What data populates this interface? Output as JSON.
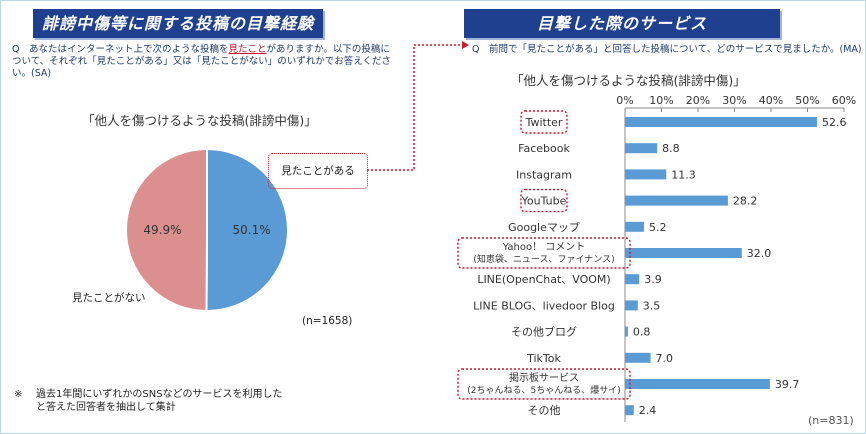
{
  "left_panel": {
    "banner": "誹謗中傷等に関する投稿の目撃経験",
    "question_prefix": "Q",
    "question_part1": "あなたはインターネット上で次のような投稿を",
    "question_highlight": "見たこと",
    "question_part2": "がありますか。以下の投稿について、それぞれ「見たことがある」又は「見たことがない」のいずれかでお答えください。(SA)",
    "callout": "見たことがある",
    "not_seen_label": "見たことがない",
    "n_label": "(n=1658)",
    "footnote_mark": "※",
    "footnote_line1": "過去1年間にいずれかのSNSなどのサービスを利用した",
    "footnote_line2": "と答えた回答者を抽出して集計"
  },
  "right_panel": {
    "banner": "目撃した際のサービス",
    "question": "Q　前問で「見たことがある」と回答した投稿について、どのサービスで見ましたか。(MA)",
    "n_label": "(n=831)"
  },
  "colors": {
    "banner_bg": "#1f3f8f",
    "pie_seen": "#5b9bd5",
    "pie_not_seen": "#dc8f8f",
    "bar": "#5b9bd5",
    "highlight": "#d0162a"
  },
  "chart_data": [
    {
      "type": "pie",
      "title": "「他人を傷つけるような投稿(誹謗中傷)」",
      "slices": [
        {
          "label": "見たことがある",
          "value": 50.1,
          "display": "50.1%"
        },
        {
          "label": "見たことがない",
          "value": 49.9,
          "display": "49.9%"
        }
      ]
    },
    {
      "type": "bar",
      "orientation": "horizontal",
      "title": "「他人を傷つけるような投稿(誹謗中傷)」",
      "xlim": [
        0,
        60
      ],
      "ticks": [
        "0%",
        "10%",
        "20%",
        "30%",
        "40%",
        "50%",
        "60%"
      ],
      "categories": [
        {
          "name": "Twitter",
          "value": 52.6,
          "label": "52.6",
          "highlight": true
        },
        {
          "name": "Facebook",
          "value": 8.8,
          "label": "8.8",
          "highlight": false
        },
        {
          "name": "Instagram",
          "value": 11.3,
          "label": "11.3",
          "highlight": false
        },
        {
          "name": "YouTube",
          "value": 28.2,
          "label": "28.2",
          "highlight": true
        },
        {
          "name": "Googleマップ",
          "value": 5.2,
          "label": "5.2",
          "highlight": false
        },
        {
          "name": "Yahoo！ コメント",
          "name2": "(知恵袋、ニュース、ファイナンス)",
          "value": 32.0,
          "label": "32.0",
          "highlight": true
        },
        {
          "name": "LINE(OpenChat、VOOM)",
          "value": 3.9,
          "label": "3.9",
          "highlight": false
        },
        {
          "name": "LINE BLOG、livedoor Blog",
          "value": 3.5,
          "label": "3.5",
          "highlight": false
        },
        {
          "name": "その他ブログ",
          "value": 0.8,
          "label": "0.8",
          "highlight": false
        },
        {
          "name": "TikTok",
          "value": 7.0,
          "label": "7.0",
          "highlight": false
        },
        {
          "name": "掲示板サービス",
          "name2": "(2ちゃんねる、5ちゃんねる、爆サイ)",
          "value": 39.7,
          "label": "39.7",
          "highlight": true
        },
        {
          "name": "その他",
          "value": 2.4,
          "label": "2.4",
          "highlight": false
        }
      ]
    }
  ]
}
